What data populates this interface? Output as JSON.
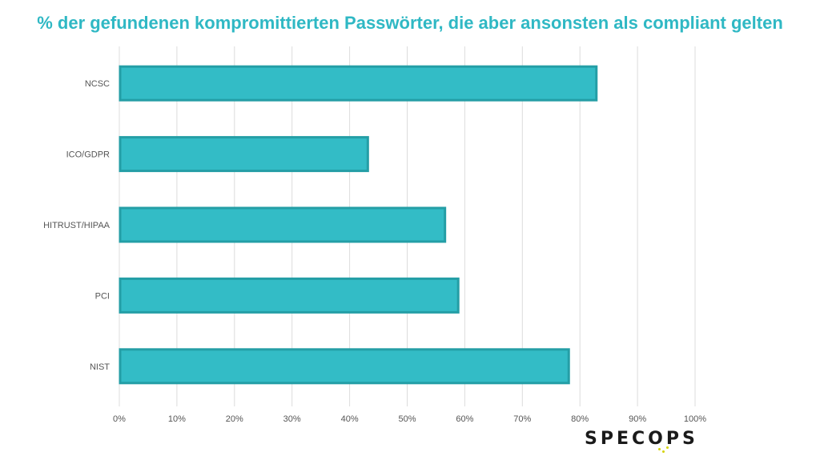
{
  "chart_data": {
    "type": "bar",
    "orientation": "horizontal",
    "title": "% der gefundenen kompromittierten Passwörter, die aber ansonsten als compliant gelten",
    "categories": [
      "NCSC",
      "ICO/GDPR",
      "HITRUST/HIPAA",
      "PCI",
      "NIST"
    ],
    "values": [
      83,
      43.3,
      56.7,
      59,
      78.2
    ],
    "xlim": [
      0,
      100
    ],
    "xticks": [
      "0%",
      "10%",
      "20%",
      "30%",
      "40%",
      "50%",
      "60%",
      "70%",
      "80%",
      "90%",
      "100%"
    ],
    "xlabel": "",
    "ylabel": "",
    "grid": true,
    "legend": "none",
    "colors": {
      "bar_fill": "#33bcc6",
      "bar_stroke": "#249ea6",
      "grid": "#dcdcdc",
      "tick_text": "#555555",
      "title": "#2fb8c4"
    }
  },
  "logo": {
    "text": "SPECOPS"
  }
}
